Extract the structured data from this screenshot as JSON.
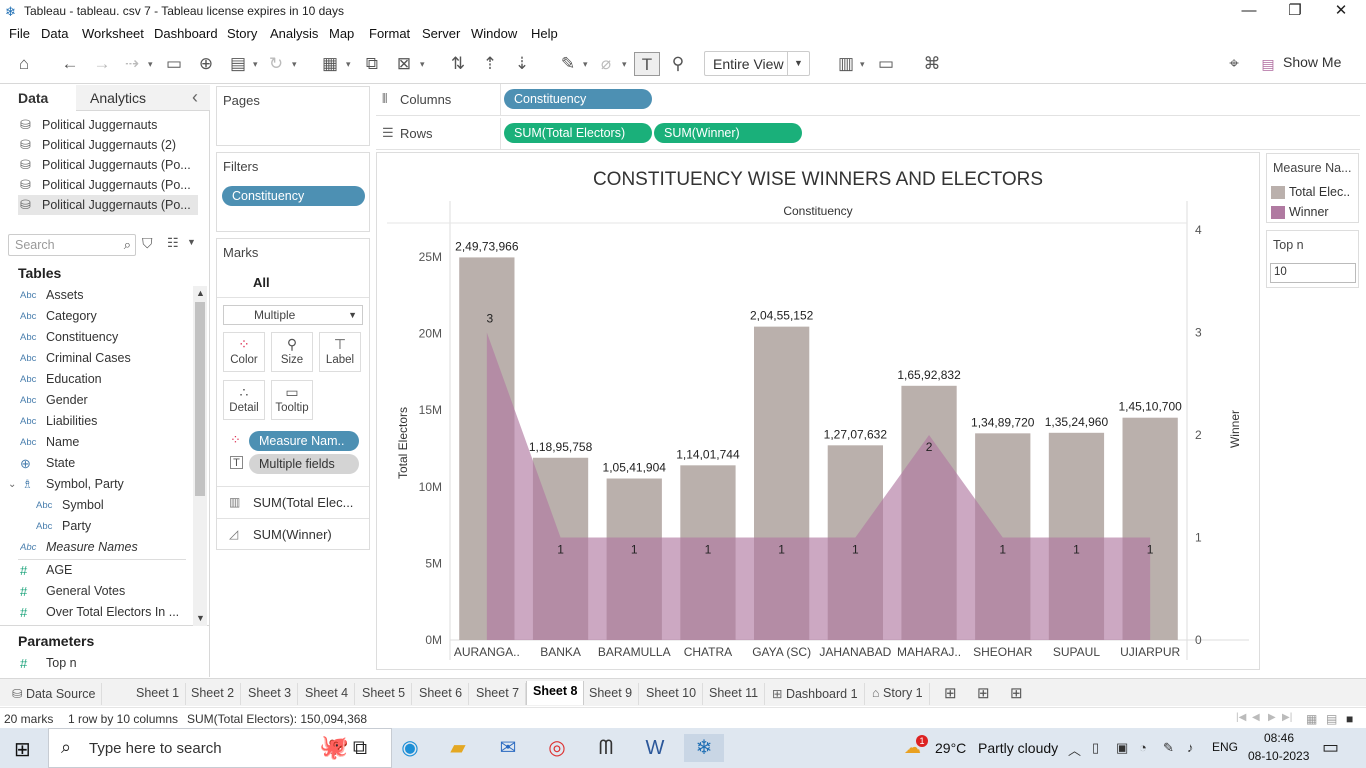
{
  "window": {
    "title": "Tableau - tableau. csv 7 - Tableau license expires in 10 days",
    "minimize": "—",
    "restore": "❐",
    "close": "✕"
  },
  "menu": [
    "File",
    "Data",
    "Worksheet",
    "Dashboard",
    "Story",
    "Analysis",
    "Map",
    "Format",
    "Server",
    "Window",
    "Help"
  ],
  "toolbar": {
    "view_mode": "Entire View",
    "show_me": "Show Me"
  },
  "left_pane": {
    "tab_data": "Data",
    "tab_analytics": "Analytics",
    "collapse": "‹",
    "datasources": [
      "Political Juggernauts",
      "Political Juggernauts (2)",
      "Political Juggernauts (Po...",
      "Political Juggernauts (Po...",
      "Political Juggernauts (Po..."
    ],
    "search_placeholder": "Search",
    "tables_header": "Tables",
    "fields": [
      {
        "type": "Abc",
        "name": "Assets"
      },
      {
        "type": "Abc",
        "name": "Category"
      },
      {
        "type": "Abc",
        "name": "Constituency"
      },
      {
        "type": "Abc",
        "name": "Criminal Cases"
      },
      {
        "type": "Abc",
        "name": "Education"
      },
      {
        "type": "Abc",
        "name": "Gender"
      },
      {
        "type": "Abc",
        "name": "Liabilities"
      },
      {
        "type": "Abc",
        "name": "Name"
      },
      {
        "type": "geo",
        "name": "State"
      },
      {
        "type": "hier",
        "name": "Symbol, Party"
      },
      {
        "type": "Abc",
        "name": "Symbol"
      },
      {
        "type": "Abc",
        "name": "Party"
      },
      {
        "type": "Abc",
        "name": "Measure Names"
      },
      {
        "type": "#",
        "name": "AGE"
      },
      {
        "type": "#",
        "name": "General Votes"
      },
      {
        "type": "#",
        "name": "Over Total Electors  In ..."
      }
    ],
    "parameters_header": "Parameters",
    "parameters": [
      {
        "type": "#",
        "name": "Top n"
      }
    ]
  },
  "pages": {
    "title": "Pages"
  },
  "filters": {
    "title": "Filters",
    "pills": [
      "Constituency"
    ]
  },
  "marks": {
    "title": "Marks",
    "all": "All",
    "type": "Multiple",
    "buttons": [
      "Color",
      "Size",
      "Label",
      "Detail",
      "Tooltip"
    ],
    "pills": [
      "Measure Nam..",
      "Multiple fields"
    ],
    "rows": [
      "SUM(Total Elec...",
      "SUM(Winner)"
    ]
  },
  "shelves": {
    "columns_label": "Columns",
    "columns_pills": [
      "Constituency"
    ],
    "rows_label": "Rows",
    "rows_pills": [
      "SUM(Total Electors)",
      "SUM(Winner)"
    ]
  },
  "legend": {
    "title": "Measure Na...",
    "items": [
      {
        "label": "Total Elec..",
        "color": "#bab0ac"
      },
      {
        "label": "Winner",
        "color": "#b07aa1"
      }
    ]
  },
  "topn": {
    "title": "Top n",
    "value": "10"
  },
  "chart_data": {
    "type": "bar",
    "title": "CONSTITUENCY WISE WINNERS AND ELECTORS",
    "xlabel": "Constituency",
    "ylabel": "Total Electors",
    "y2label": "Winner",
    "categories": [
      "AURANGA..",
      "BANKA",
      "BARAMULLA",
      "CHATRA",
      "GAYA (SC)",
      "JAHANABAD",
      "MAHARAJ..",
      "SHEOHAR",
      "SUPAUL",
      "UJIARPUR"
    ],
    "ylim": [
      0,
      25000000
    ],
    "y_ticks": [
      "0M",
      "5M",
      "10M",
      "15M",
      "20M",
      "25M"
    ],
    "y2lim": [
      0,
      4
    ],
    "y2_ticks": [
      "0",
      "1",
      "2",
      "3",
      "4"
    ],
    "series": [
      {
        "name": "Total Electors",
        "type": "bar",
        "color": "#bab0ac",
        "values": [
          24973966,
          11895758,
          10541904,
          11401744,
          20455152,
          12707632,
          16592832,
          13489720,
          13524960,
          14510700
        ],
        "labels": [
          "2,49,73,966",
          "1,18,95,758",
          "1,05,41,904",
          "1,14,01,744",
          "2,04,55,152",
          "1,27,07,632",
          "1,65,92,832",
          "1,34,89,720",
          "1,35,24,960",
          "1,45,10,700"
        ]
      },
      {
        "name": "Winner",
        "type": "area",
        "color": "#b07aa1",
        "values": [
          3,
          1,
          1,
          1,
          1,
          1,
          2,
          1,
          1,
          1
        ],
        "labels": [
          "3",
          "1",
          "1",
          "1",
          "1",
          "1",
          "2",
          "1",
          "1",
          "1"
        ]
      }
    ]
  },
  "sheet_tabs": [
    "Data Source",
    "Sheet 1",
    "Sheet 2",
    "Sheet 3",
    "Sheet 4",
    "Sheet 5",
    "Sheet 6",
    "Sheet 7",
    "Sheet 8",
    "Sheet 9",
    "Sheet 10",
    "Sheet 11",
    "Dashboard 1",
    "Story 1"
  ],
  "active_sheet": "Sheet 8",
  "status": {
    "marks": "20 marks",
    "dims": "1 row by 10 columns",
    "sum": "SUM(Total Electors): 150,094,368"
  },
  "taskbar": {
    "search_placeholder": "Type here to search",
    "weather_temp": "29°C",
    "weather_text": "Partly cloudy",
    "lang": "ENG",
    "time": "08:46",
    "date": "08-10-2023",
    "notification_badge": "1"
  }
}
